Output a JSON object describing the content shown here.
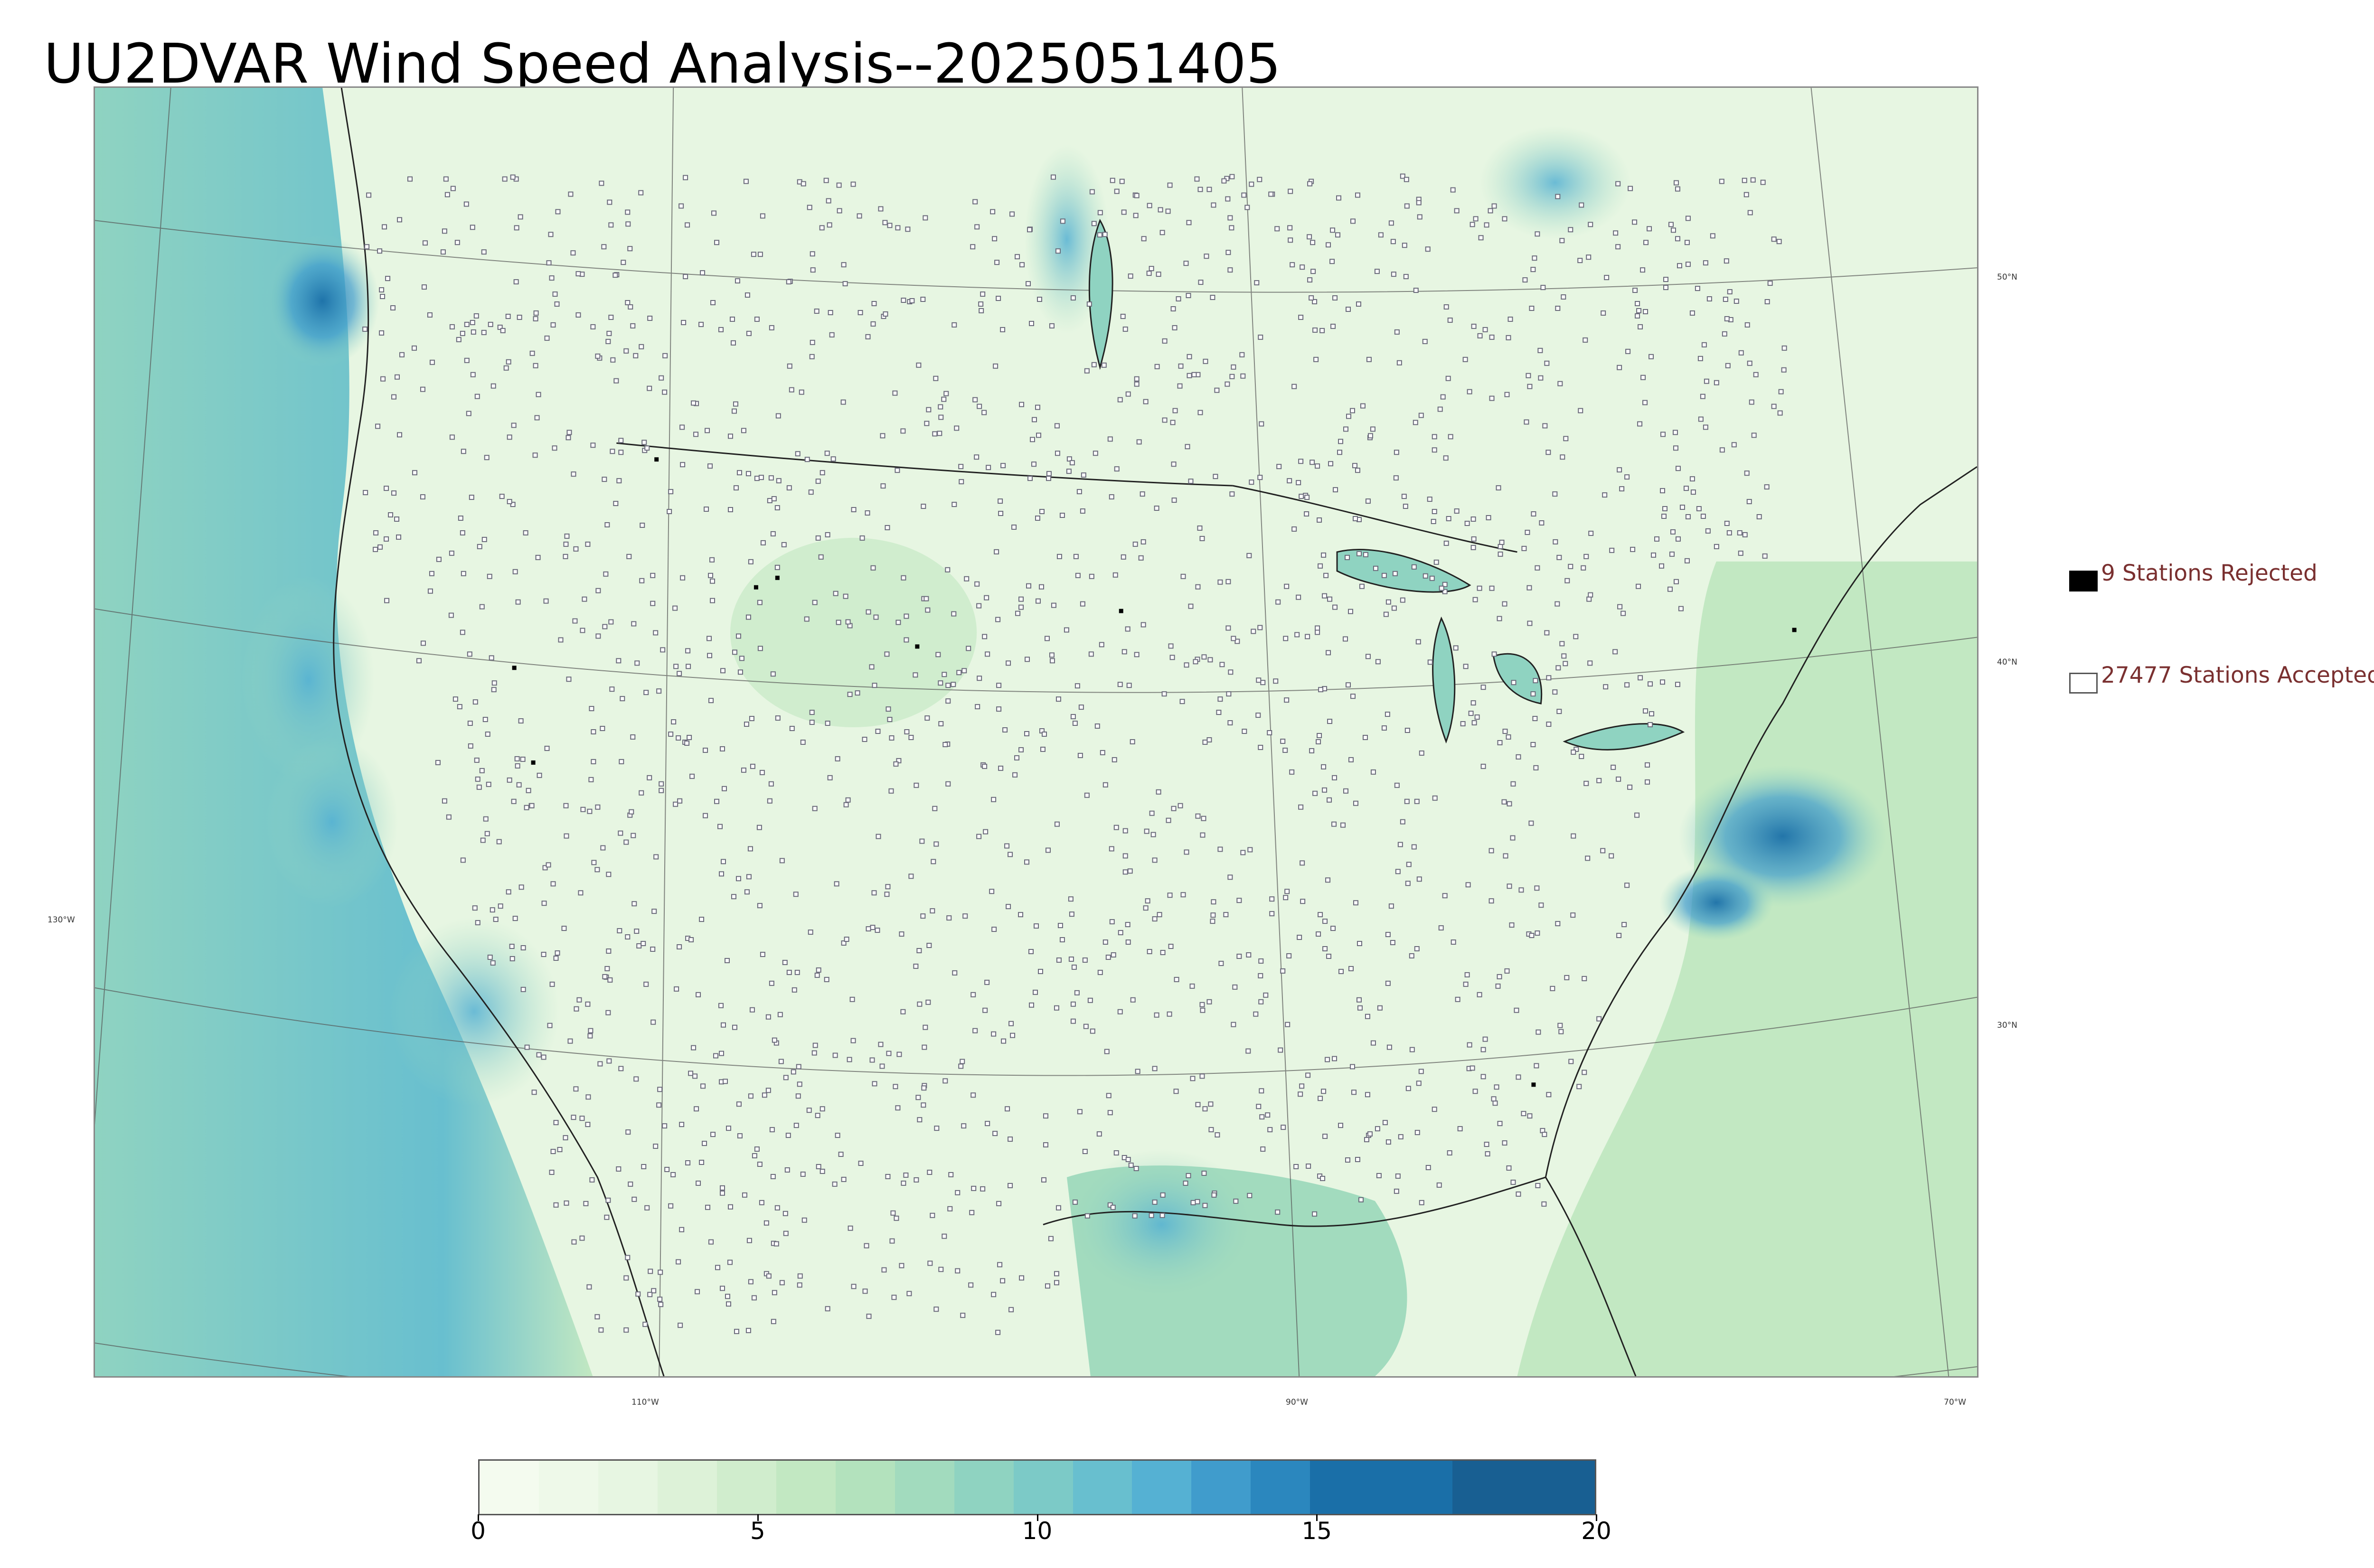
{
  "title": "UU2DVAR Wind Speed Analysis--2025051405",
  "map": {
    "latitude_labels": [
      "50°N",
      "40°N",
      "30°N"
    ],
    "longitude_labels": [
      "130°W",
      "110°W",
      "90°W",
      "70°W"
    ]
  },
  "legend": {
    "rejected": {
      "label": "9 Stations Rejected",
      "color": "#000000"
    },
    "accepted": {
      "label": "27477 Stations Accepted",
      "color": "#ffffff"
    }
  },
  "colorbar": {
    "min": 0,
    "max": 20,
    "tick_labels": [
      "0",
      "5",
      "10",
      "15",
      "20"
    ],
    "colors": [
      "#f4fbef",
      "#eef9e9",
      "#e7f6e2",
      "#ddf2d8",
      "#d0edcd",
      "#c2e8c2",
      "#b3e2bd",
      "#a2dbbe",
      "#8fd3c1",
      "#7ccac7",
      "#68bfcf",
      "#55b1d3",
      "#409ccc",
      "#2b87be",
      "#1a6fa8",
      "#185f92"
    ]
  }
}
